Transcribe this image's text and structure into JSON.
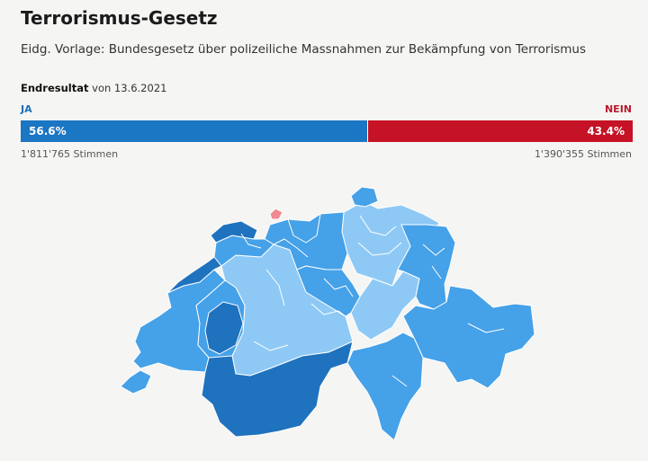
{
  "header": {
    "title": "Terrorismus-Gesetz",
    "subtitle": "Eidg. Vorlage: Bundesgesetz über polizeiliche Massnahmen zur Bekämpfung von Terrorismus",
    "result_label": "Endresultat",
    "result_date": "von 13.6.2021"
  },
  "result": {
    "yes_label": "JA",
    "no_label": "NEIN",
    "yes_share": 56.6,
    "no_share": 43.4,
    "yes_percent_text": "56.6%",
    "no_percent_text": "43.4%",
    "yes_votes_text": "1'811'765 Stimmen",
    "no_votes_text": "1'390'355 Stimmen"
  },
  "colors": {
    "yes_bar": "#1b76c4",
    "no_bar": "#c61226",
    "yes_dark": "#1f72be",
    "yes_mid": "#45a1e8",
    "yes_light": "#8ec9f5",
    "no_light": "#f08a92",
    "background": "#f5f5f3"
  },
  "map": {
    "legend_note": ""
  }
}
